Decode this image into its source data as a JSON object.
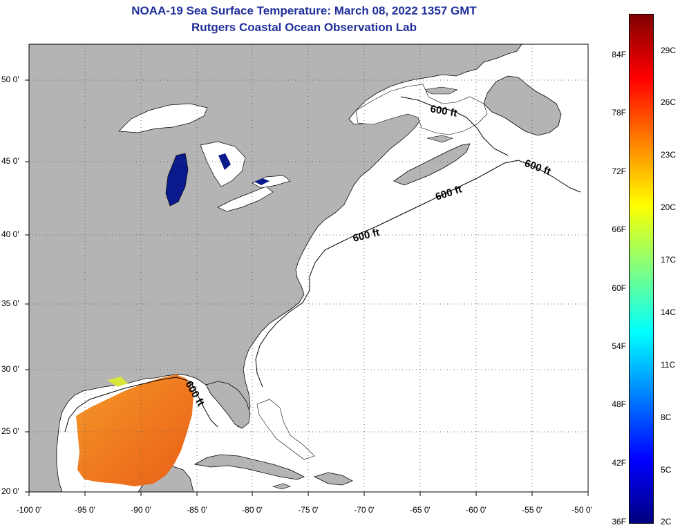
{
  "title_line1": "NOAA-19 Sea Surface Temperature:  March 08, 2022 1357 GMT",
  "title_line2": "Rutgers Coastal Ocean Observation Lab",
  "map": {
    "lon_range": [
      -100,
      -50
    ],
    "lat_range": [
      20,
      52.5
    ],
    "lat_labels": [
      "50 0'",
      "45 0'",
      "40 0'",
      "35 0'",
      "30 0'",
      "25 0'",
      "20 0'"
    ],
    "lon_labels": [
      "-100 0'",
      "-95 0'",
      "-90 0'",
      "-85 0'",
      "-80 0'",
      "-75 0'",
      "-70 0'",
      "-65 0'",
      "-60 0'",
      "-55 0'",
      "-50 0'"
    ],
    "isobath_labels": [
      "600 ft",
      "600 ft",
      "600 ft",
      "600 ft",
      "600 ft"
    ],
    "colors": {
      "land": "#b4b4b4",
      "ocean_no_data": "#ffffff",
      "gulf_sst": "#f07a1e",
      "lake_cold": "#0a1a8c",
      "grid": "#555555"
    }
  },
  "colorbar": {
    "f_labels": [
      "84F",
      "78F",
      "72F",
      "66F",
      "60F",
      "54F",
      "48F",
      "42F",
      "36F"
    ],
    "c_labels": [
      "29C",
      "26C",
      "23C",
      "20C",
      "17C",
      "14C",
      "11C",
      "8C",
      "5C",
      "2C"
    ],
    "colors_bottom_to_top": [
      "#00007f",
      "#0000ff",
      "#0080ff",
      "#00ffff",
      "#80ff80",
      "#ffff00",
      "#ff8000",
      "#ff0000",
      "#7f0000"
    ]
  }
}
